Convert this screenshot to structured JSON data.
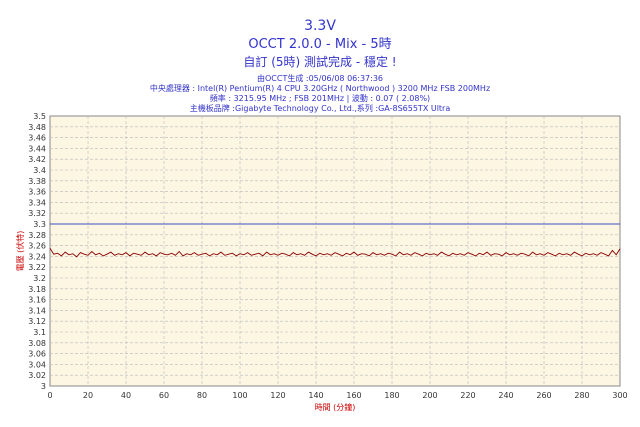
{
  "title": "3.3V",
  "subtitle": "OCCT 2.0.0 - Mix - 5時",
  "status": "自訂 (5時) 測試完成 - 穩定 !",
  "info": {
    "line1": "由OCCT生成 :05/06/08 06:37:36",
    "line2": "中央處理器 : Intel(R) Pentium(R) 4 CPU 3.20GHz ( Northwood ) 3200 MHz FSB 200MHz",
    "line3": "頻率 : 3215.95 MHz ; FSB 201MHz | 波動 : 0.07 ( 2.08%)",
    "line4": "主機板品牌 :Gigabyte Technology Co., Ltd.,系列 :GA-8S655TX Ultra"
  },
  "colors": {
    "title": "#3333cc",
    "plot_bg": "#fdf6e3",
    "grid": "#b8b8b8",
    "series": "#8b0000",
    "reference_line": "#3b4fc4",
    "axis_label": "#cc0000"
  },
  "chart_data": {
    "type": "line",
    "xlabel": "時間 (分鐘)",
    "ylabel": "電壓 (伏特)",
    "xlim": [
      0,
      300
    ],
    "ylim": [
      3.0,
      3.5
    ],
    "x_ticks": [
      0,
      20,
      40,
      60,
      80,
      100,
      120,
      140,
      160,
      180,
      200,
      220,
      240,
      260,
      280,
      300
    ],
    "y_ticks": [
      "3",
      "3.02",
      "3.04",
      "3.06",
      "3.08",
      "3.1",
      "3.12",
      "3.14",
      "3.16",
      "3.18",
      "3.2",
      "3.22",
      "3.24",
      "3.26",
      "3.28",
      "3.3",
      "3.32",
      "3.34",
      "3.36",
      "3.38",
      "3.4",
      "3.42",
      "3.44",
      "3.46",
      "3.48",
      "3.5"
    ],
    "grid": true,
    "reference_line": {
      "y": 3.3
    },
    "series": [
      {
        "x": [
          0,
          2,
          4,
          6,
          8,
          10,
          12,
          14,
          16,
          18,
          20,
          22,
          24,
          26,
          28,
          30,
          32,
          34,
          36,
          38,
          40,
          42,
          44,
          46,
          48,
          50,
          52,
          54,
          56,
          58,
          60,
          62,
          64,
          66,
          68,
          70,
          72,
          74,
          76,
          78,
          80,
          82,
          84,
          86,
          88,
          90,
          92,
          94,
          96,
          98,
          100,
          102,
          104,
          106,
          108,
          110,
          112,
          114,
          116,
          118,
          120,
          122,
          124,
          126,
          128,
          130,
          132,
          134,
          136,
          138,
          140,
          142,
          144,
          146,
          148,
          150,
          152,
          154,
          156,
          158,
          160,
          162,
          164,
          166,
          168,
          170,
          172,
          174,
          176,
          178,
          180,
          182,
          184,
          186,
          188,
          190,
          192,
          194,
          196,
          198,
          200,
          202,
          204,
          206,
          208,
          210,
          212,
          214,
          216,
          218,
          220,
          222,
          224,
          226,
          228,
          230,
          232,
          234,
          236,
          238,
          240,
          242,
          244,
          246,
          248,
          250,
          252,
          254,
          256,
          258,
          260,
          262,
          264,
          266,
          268,
          270,
          272,
          274,
          276,
          278,
          280,
          282,
          284,
          286,
          288,
          290,
          292,
          294,
          296,
          298,
          300
        ],
        "y": [
          3.255,
          3.244,
          3.246,
          3.241,
          3.248,
          3.243,
          3.245,
          3.239,
          3.247,
          3.244,
          3.242,
          3.249,
          3.243,
          3.246,
          3.241,
          3.244,
          3.248,
          3.242,
          3.245,
          3.243,
          3.247,
          3.241,
          3.246,
          3.244,
          3.242,
          3.248,
          3.243,
          3.245,
          3.241,
          3.247,
          3.244,
          3.243,
          3.246,
          3.242,
          3.249,
          3.241,
          3.245,
          3.243,
          3.247,
          3.242,
          3.244,
          3.246,
          3.241,
          3.245,
          3.243,
          3.248,
          3.242,
          3.244,
          3.246,
          3.241,
          3.245,
          3.243,
          3.247,
          3.242,
          3.244,
          3.246,
          3.241,
          3.248,
          3.243,
          3.245,
          3.242,
          3.246,
          3.244,
          3.241,
          3.247,
          3.243,
          3.245,
          3.242,
          3.248,
          3.244,
          3.241,
          3.246,
          3.243,
          3.245,
          3.242,
          3.247,
          3.244,
          3.241,
          3.246,
          3.243,
          3.248,
          3.242,
          3.245,
          3.244,
          3.241,
          3.247,
          3.243,
          3.245,
          3.242,
          3.246,
          3.244,
          3.241,
          3.248,
          3.243,
          3.245,
          3.242,
          3.247,
          3.244,
          3.241,
          3.246,
          3.243,
          3.245,
          3.242,
          3.248,
          3.244,
          3.241,
          3.246,
          3.243,
          3.245,
          3.242,
          3.247,
          3.244,
          3.241,
          3.246,
          3.243,
          3.248,
          3.242,
          3.245,
          3.244,
          3.241,
          3.247,
          3.243,
          3.245,
          3.242,
          3.246,
          3.244,
          3.241,
          3.248,
          3.243,
          3.245,
          3.242,
          3.247,
          3.244,
          3.241,
          3.246,
          3.243,
          3.245,
          3.242,
          3.248,
          3.244,
          3.241,
          3.246,
          3.243,
          3.245,
          3.242,
          3.247,
          3.244,
          3.241,
          3.251,
          3.243,
          3.254
        ]
      }
    ]
  }
}
